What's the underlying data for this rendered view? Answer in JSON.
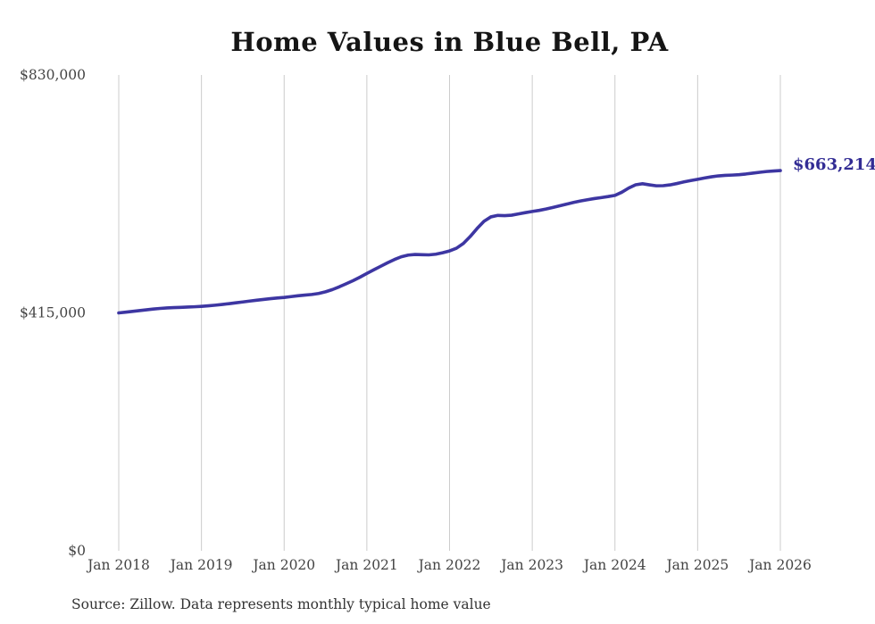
{
  "chart_data": {
    "type": "line",
    "title": "Home Values in Blue Bell, PA",
    "end_label": "$663,214",
    "end_value": 663214,
    "source_note": "Source: Zillow. Data represents monthly typical home value",
    "xlabel": "",
    "ylabel": "",
    "ylim": [
      0,
      830000
    ],
    "grid": "vertical gridlines only, no axis lines",
    "legend": "none",
    "x_unit": "month",
    "x_tick_labels": [
      "Jan 2018",
      "Jan 2019",
      "Jan 2020",
      "Jan 2021",
      "Jan 2022",
      "Jan 2023",
      "Jan 2024",
      "Jan 2025",
      "Jan 2026"
    ],
    "y_ticks": [
      {
        "label": "$0",
        "value": 0
      },
      {
        "label": "$415,000",
        "value": 415000
      },
      {
        "label": "$830,000",
        "value": 830000
      }
    ],
    "series": [
      {
        "name": "Monthly typical home value",
        "start_month": "Jan 2018",
        "end_month": "Jan 2026",
        "values": [
          415000,
          416300,
          417600,
          419000,
          420400,
          421700,
          422800,
          423600,
          424200,
          424700,
          425200,
          425700,
          426400,
          427300,
          428400,
          429700,
          431100,
          432600,
          434100,
          435600,
          437100,
          438500,
          439800,
          441000,
          442000,
          443400,
          444900,
          446100,
          447100,
          448900,
          451800,
          455700,
          460500,
          465800,
          471300,
          477300,
          483800,
          490100,
          496300,
          502400,
          508100,
          512900,
          515800,
          516900,
          516500,
          516200,
          517400,
          519900,
          523100,
          527800,
          536100,
          548300,
          562300,
          574800,
          582500,
          585100,
          584700,
          585400,
          587600,
          589900,
          591900,
          593800,
          596200,
          598900,
          601800,
          604800,
          607700,
          610200,
          612400,
          614400,
          616100,
          617900,
          620000,
          625500,
          632800,
          638500,
          640300,
          638400,
          636700,
          636900,
          638300,
          640700,
          643500,
          645900,
          648000,
          650300,
          652400,
          654000,
          654900,
          655400,
          656100,
          657300,
          658800,
          660300,
          661600,
          662500,
          663214
        ]
      }
    ],
    "colors": {
      "line": "#3d36a2",
      "end_label": "#322c94",
      "grid": "#cccccc",
      "ticks": "#444444",
      "title": "#151515",
      "source": "#333333"
    }
  }
}
